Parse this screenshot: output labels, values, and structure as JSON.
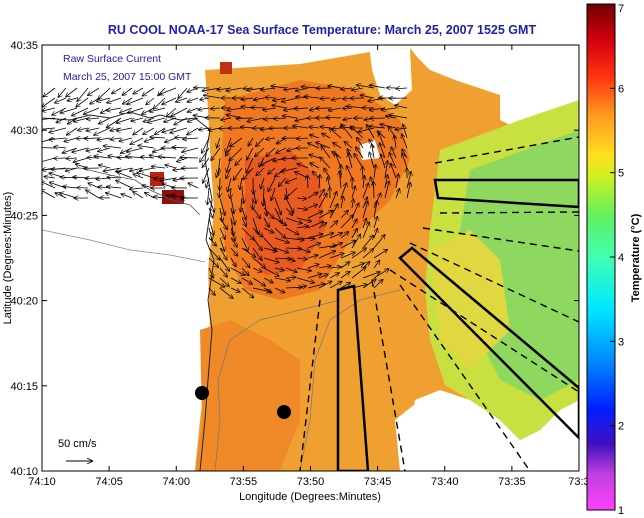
{
  "title": "RU COOL  NOAA-17  Sea Surface Temperature:  March 25, 2007 1525 GMT",
  "annotation": {
    "line1": "Raw Surface Current",
    "line2": "March 25, 2007 15:00 GMT",
    "scale_label": "50 cm/s"
  },
  "axes": {
    "xlabel": "Longitude (Degrees:Minutes)",
    "ylabel": "Latitude (Degrees:Minutes)",
    "x_ticks": [
      "74:10",
      "74:05",
      "74:00",
      "73:55",
      "73:50",
      "73:45",
      "73:40",
      "73:35",
      "73:3"
    ],
    "y_ticks": [
      "40:35",
      "40:30",
      "40:25",
      "40:20",
      "40:15",
      "40:10"
    ]
  },
  "colorbar": {
    "label": "Temperature (°C)",
    "ticks": [
      "7",
      "6",
      "5",
      "4",
      "3",
      "2",
      "1"
    ],
    "range": [
      1,
      7
    ]
  },
  "colors": {
    "title": "#1f1fb0",
    "annotation": "#1f1fb0",
    "land": "#ffffff",
    "no_data": "#ffffff"
  }
}
